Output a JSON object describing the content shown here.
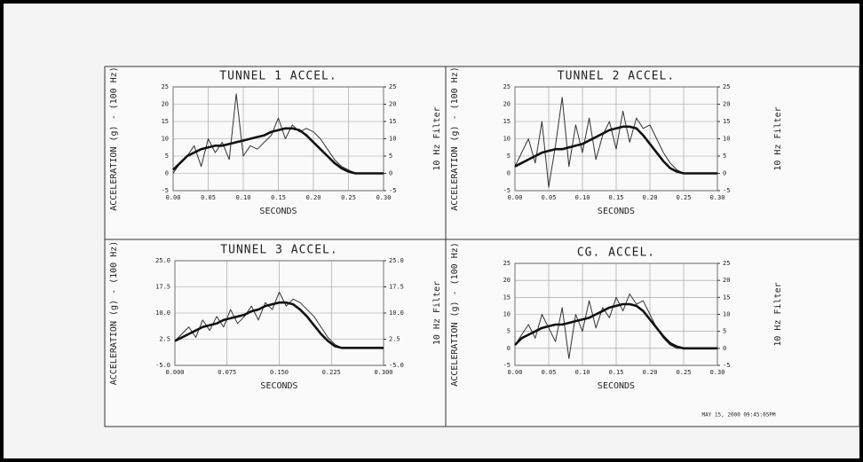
{
  "chart_data": [
    {
      "type": "line",
      "title": "TUNNEL 1 ACCEL.",
      "xlabel": "SECONDS",
      "ylabel": "ACCELERATION (g) - (100 Hz)",
      "y2label": "10 Hz Filter",
      "x": [
        0,
        0.01,
        0.02,
        0.03,
        0.04,
        0.05,
        0.06,
        0.07,
        0.08,
        0.09,
        0.1,
        0.11,
        0.12,
        0.13,
        0.14,
        0.15,
        0.16,
        0.17,
        0.18,
        0.19,
        0.2,
        0.21,
        0.22,
        0.23,
        0.24,
        0.25,
        0.26,
        0.27,
        0.28,
        0.29,
        0.3
      ],
      "xlim": [
        0,
        0.3
      ],
      "ylim": [
        -5,
        25
      ],
      "y2lim": [
        -5,
        25
      ],
      "grid": true,
      "xticks": [
        {
          "value": 0,
          "label": "0.00"
        },
        {
          "value": 0.05,
          "label": "0.05"
        },
        {
          "value": 0.1,
          "label": "0.10"
        },
        {
          "value": 0.15,
          "label": "0.15"
        },
        {
          "value": 0.2,
          "label": "0.20"
        },
        {
          "value": 0.25,
          "label": "0.25"
        },
        {
          "value": 0.3,
          "label": "0.30"
        }
      ],
      "yticks": [
        -5,
        0,
        5,
        10,
        15,
        20,
        25
      ],
      "y2ticks": [
        -5,
        0,
        5,
        10,
        15,
        20,
        25
      ],
      "series": [
        {
          "color": "#333333",
          "values": [
            0,
            3,
            5,
            8,
            2,
            10,
            6,
            9,
            4,
            23,
            5,
            8,
            7,
            9,
            11,
            16,
            10,
            14,
            12,
            13,
            12,
            10,
            7,
            4,
            2,
            1,
            0,
            0,
            0,
            0,
            0
          ]
        },
        {
          "color": "#111111",
          "axis": "y2",
          "values": [
            1,
            3,
            5,
            6,
            7,
            7.5,
            8,
            8,
            8.5,
            9,
            9.5,
            10,
            10.5,
            11,
            12,
            12.5,
            13,
            13,
            12.5,
            11,
            9,
            7,
            5,
            3,
            1.5,
            0.5,
            0,
            0,
            0,
            0,
            0
          ]
        }
      ]
    },
    {
      "type": "line",
      "title": "TUNNEL 2 ACCEL.",
      "xlabel": "SECONDS",
      "ylabel": "ACCELERATION (g) - (100 Hz)",
      "y2label": "10 Hz Filter",
      "x": [
        0,
        0.01,
        0.02,
        0.03,
        0.04,
        0.05,
        0.06,
        0.07,
        0.08,
        0.09,
        0.1,
        0.11,
        0.12,
        0.13,
        0.14,
        0.15,
        0.16,
        0.17,
        0.18,
        0.19,
        0.2,
        0.21,
        0.22,
        0.23,
        0.24,
        0.25,
        0.26,
        0.27,
        0.28,
        0.29,
        0.3
      ],
      "xlim": [
        0,
        0.3
      ],
      "ylim": [
        -5,
        25
      ],
      "y2lim": [
        -5,
        25
      ],
      "grid": true,
      "xticks": [
        {
          "value": 0,
          "label": "0.00"
        },
        {
          "value": 0.05,
          "label": "0.05"
        },
        {
          "value": 0.1,
          "label": "0.10"
        },
        {
          "value": 0.15,
          "label": "0.15"
        },
        {
          "value": 0.2,
          "label": "0.20"
        },
        {
          "value": 0.25,
          "label": "0.25"
        },
        {
          "value": 0.3,
          "label": "0.30"
        }
      ],
      "yticks": [
        -5,
        0,
        5,
        10,
        15,
        20,
        25
      ],
      "y2ticks": [
        -5,
        0,
        5,
        10,
        15,
        20,
        25
      ],
      "series": [
        {
          "color": "#333333",
          "values": [
            2,
            6,
            10,
            3,
            15,
            -4,
            8,
            22,
            2,
            14,
            6,
            16,
            4,
            11,
            15,
            7,
            18,
            9,
            16,
            13,
            14,
            10,
            6,
            3,
            1,
            0,
            0,
            0,
            0,
            0,
            0
          ]
        },
        {
          "color": "#111111",
          "axis": "y2",
          "values": [
            2,
            3,
            4,
            5,
            6,
            6.5,
            7,
            7,
            7.5,
            8,
            8.5,
            9.5,
            10.5,
            11.5,
            12.5,
            13,
            13.5,
            13.5,
            13,
            11,
            8.5,
            6,
            3.5,
            1.5,
            0.5,
            0,
            0,
            0,
            0,
            0,
            0
          ]
        }
      ]
    },
    {
      "type": "line",
      "title": "TUNNEL 3 ACCEL.",
      "xlabel": "SECONDS",
      "ylabel": "ACCELERATION (g) - (100 Hz)",
      "y2label": "10 Hz Filter",
      "x": [
        0,
        0.01,
        0.02,
        0.03,
        0.04,
        0.05,
        0.06,
        0.07,
        0.08,
        0.09,
        0.1,
        0.11,
        0.12,
        0.13,
        0.14,
        0.15,
        0.16,
        0.17,
        0.18,
        0.19,
        0.2,
        0.21,
        0.22,
        0.23,
        0.24,
        0.25,
        0.26,
        0.27,
        0.28,
        0.29,
        0.3
      ],
      "xlim": [
        0,
        0.3
      ],
      "ylim": [
        -5,
        25
      ],
      "y2lim": [
        -5,
        25
      ],
      "grid": true,
      "xticks": [
        {
          "value": 0,
          "label": "0.000"
        },
        {
          "value": 0.075,
          "label": "0.075"
        },
        {
          "value": 0.15,
          "label": "0.150"
        },
        {
          "value": 0.225,
          "label": "0.225"
        },
        {
          "value": 0.3,
          "label": "0.300"
        }
      ],
      "yticks": [
        {
          "value": -5,
          "label": "-5.0"
        },
        {
          "value": 2.5,
          "label": "2.5"
        },
        {
          "value": 10,
          "label": "10.0"
        },
        {
          "value": 17.5,
          "label": "17.5"
        },
        {
          "value": 25,
          "label": "25.0"
        }
      ],
      "y2ticks": [
        {
          "value": -5,
          "label": "-5.0"
        },
        {
          "value": 2.5,
          "label": "2.5"
        },
        {
          "value": 10,
          "label": "10.0"
        },
        {
          "value": 17.5,
          "label": "17.5"
        },
        {
          "value": 25,
          "label": "25.0"
        }
      ],
      "series": [
        {
          "color": "#333333",
          "values": [
            2,
            4,
            6,
            3,
            8,
            5,
            9,
            6,
            11,
            7,
            9,
            12,
            8,
            13,
            11,
            16,
            12,
            14,
            13,
            11,
            9,
            6,
            3,
            1,
            0,
            0,
            0,
            0,
            0,
            0,
            0
          ]
        },
        {
          "color": "#111111",
          "axis": "y2",
          "values": [
            2,
            3,
            4,
            5,
            6,
            6.5,
            7,
            8,
            8.5,
            9,
            9.5,
            10.5,
            11,
            12,
            12.5,
            13,
            13,
            12.5,
            11,
            9,
            6.5,
            4,
            2,
            0.5,
            0,
            0,
            0,
            0,
            0,
            0,
            0
          ]
        }
      ]
    },
    {
      "type": "line",
      "title": "CG. ACCEL.",
      "xlabel": "SECONDS",
      "ylabel": "ACCELERATION (g) - (100 Hz)",
      "y2label": "10 Hz Filter",
      "x": [
        0,
        0.01,
        0.02,
        0.03,
        0.04,
        0.05,
        0.06,
        0.07,
        0.08,
        0.09,
        0.1,
        0.11,
        0.12,
        0.13,
        0.14,
        0.15,
        0.16,
        0.17,
        0.18,
        0.19,
        0.2,
        0.21,
        0.22,
        0.23,
        0.24,
        0.25,
        0.26,
        0.27,
        0.28,
        0.29,
        0.3
      ],
      "xlim": [
        0,
        0.3
      ],
      "ylim": [
        -5,
        25
      ],
      "y2lim": [
        -5,
        25
      ],
      "grid": true,
      "xticks": [
        {
          "value": 0,
          "label": "0.00"
        },
        {
          "value": 0.05,
          "label": "0.05"
        },
        {
          "value": 0.1,
          "label": "0.10"
        },
        {
          "value": 0.15,
          "label": "0.15"
        },
        {
          "value": 0.2,
          "label": "0.20"
        },
        {
          "value": 0.25,
          "label": "0.25"
        },
        {
          "value": 0.3,
          "label": "0.30"
        }
      ],
      "yticks": [
        -5,
        0,
        5,
        10,
        15,
        20,
        25
      ],
      "y2ticks": [
        -5,
        0,
        5,
        10,
        15,
        20,
        25
      ],
      "series": [
        {
          "color": "#333333",
          "values": [
            1,
            4,
            7,
            3,
            10,
            6,
            2,
            12,
            -3,
            10,
            5,
            14,
            6,
            12,
            9,
            15,
            11,
            16,
            13,
            14,
            10,
            6,
            3,
            1,
            0,
            0,
            0,
            0,
            0,
            0,
            0
          ]
        },
        {
          "color": "#111111",
          "axis": "y2",
          "values": [
            1,
            3,
            4,
            5,
            6,
            6.5,
            7,
            7,
            7.5,
            8,
            8.5,
            9,
            10,
            11,
            12,
            12.5,
            13,
            13,
            12.5,
            11,
            8.5,
            6,
            3.5,
            1.5,
            0.5,
            0,
            0,
            0,
            0,
            0,
            0
          ]
        }
      ]
    }
  ],
  "timestamp": "MAY 15, 2000 09:45:05PM"
}
